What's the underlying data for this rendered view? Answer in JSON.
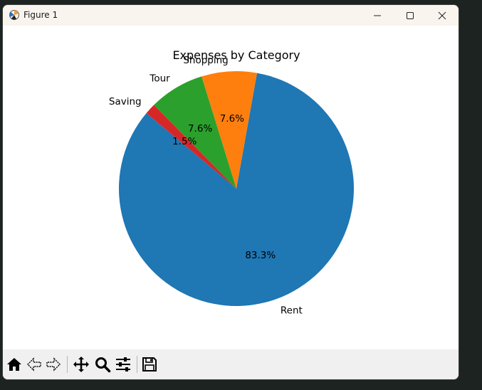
{
  "window": {
    "title": "Figure 1"
  },
  "toolbar": {
    "tools": [
      "home-icon",
      "back-icon",
      "forward-icon",
      "pan-icon",
      "zoom-icon",
      "configure-subplots-icon",
      "save-icon"
    ]
  },
  "colors": {
    "rent": "#1f77b4",
    "shopping": "#ff7f0e",
    "tour": "#2ca02c",
    "saving": "#d62728"
  },
  "chart_data": {
    "type": "pie",
    "title": "Expenses by Category",
    "start_angle_deg": 140,
    "slices": [
      {
        "label": "Rent",
        "value": 83.3,
        "pct_label": "83.3%"
      },
      {
        "label": "Shopping",
        "value": 7.6,
        "pct_label": "7.6%"
      },
      {
        "label": "Tour",
        "value": 7.6,
        "pct_label": "7.6%"
      },
      {
        "label": "Saving",
        "value": 1.5,
        "pct_label": "1.5%"
      }
    ]
  }
}
